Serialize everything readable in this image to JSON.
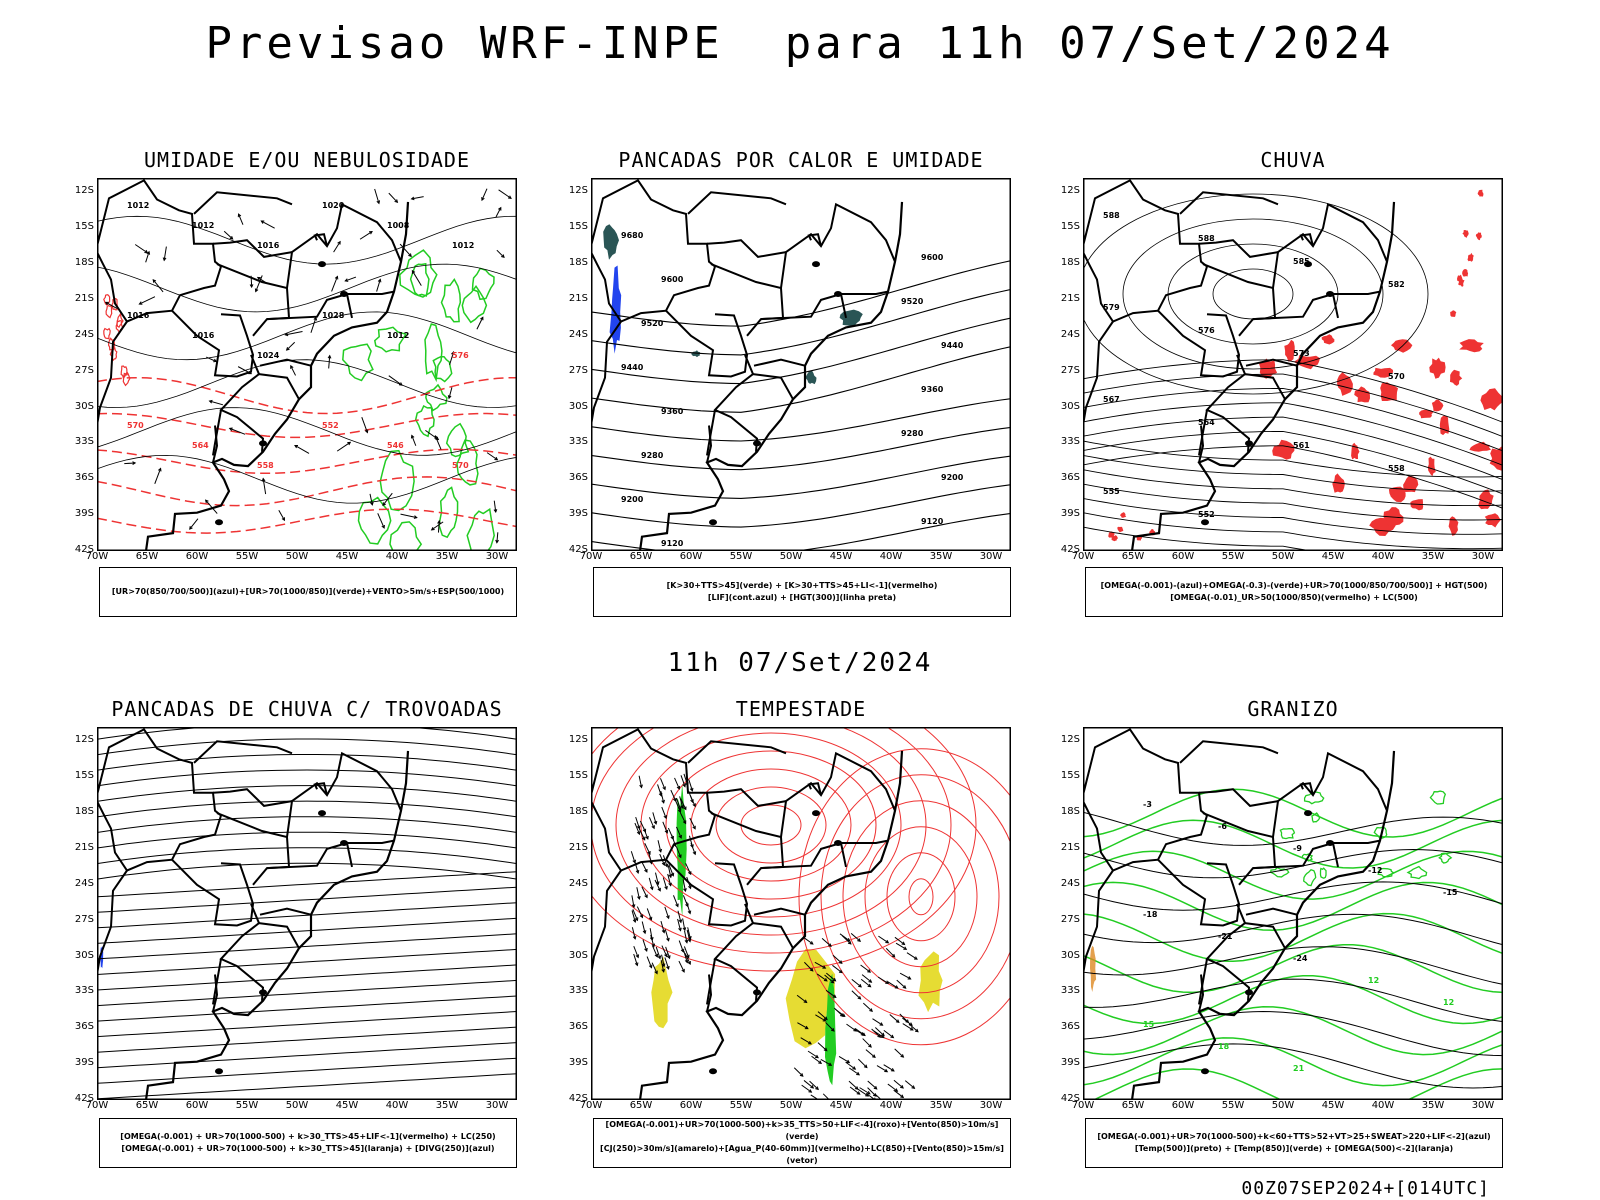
{
  "header": {
    "title": "Previsao WRF-INPE  para 11h 07/Set/2024",
    "mid_title": "11h 07/Set/2024",
    "footer": "00Z07SEP2024+[014UTC]"
  },
  "axes": {
    "lat_labels": [
      "12S",
      "15S",
      "18S",
      "21S",
      "24S",
      "27S",
      "30S",
      "33S",
      "36S",
      "39S",
      "42S"
    ],
    "lon_labels": [
      "70W",
      "65W",
      "60W",
      "55W",
      "50W",
      "45W",
      "40W",
      "35W",
      "30W"
    ]
  },
  "panels": [
    {
      "title": "UMIDADE E/OU NEBULOSIDADE",
      "legend": [
        "[UR>70(850/700/500)](azul)+[UR>70(1000/850)](verde)+VENTO>5m/s+ESP(500/1000)"
      ],
      "contour_labels": [
        "1012",
        "1012",
        "1016",
        "1020",
        "1008",
        "1012",
        "1016",
        "1016",
        "1024",
        "1028",
        "1012",
        "576",
        "570",
        "564",
        "558",
        "552",
        "546",
        "570"
      ]
    },
    {
      "title": "PANCADAS POR CALOR E UMIDADE",
      "legend": [
        "[K>30+TTS>45](verde) + [K>30+TTS>45+LI<-1](vermelho)",
        "[LIF](cont.azul) + [HGT(300)](linha preta)"
      ],
      "contour_labels": [
        "9680",
        "9600",
        "9600",
        "9520",
        "9520",
        "9440",
        "9440",
        "9360",
        "9360",
        "9280",
        "9280",
        "9200",
        "9200",
        "9120",
        "9120"
      ]
    },
    {
      "title": "CHUVA",
      "legend": [
        "[OMEGA(-0.001)-(azul)+OMEGA(-0.3)-(verde)+UR>70(1000/850/700/500)] + HGT(500)",
        "[OMEGA(-0.01)_UR>50(1000/850)(vermelho) + LC(500)"
      ],
      "contour_labels": [
        "588",
        "588",
        "585",
        "582",
        "579",
        "576",
        "573",
        "570",
        "567",
        "564",
        "561",
        "558",
        "555",
        "552"
      ]
    },
    {
      "title": "PANCADAS DE CHUVA C/ TROVOADAS",
      "legend": [
        "[OMEGA(-0.001) + UR>70(1000-500) + k>30_TTS>45+LIF<-1](vermelho) + LC(250)",
        "[OMEGA(-0.001) + UR>70(1000-500) + k>30_TTS>45](laranja) + [DIVG(250)](azul)"
      ],
      "contour_labels": []
    },
    {
      "title": "TEMPESTADE",
      "legend": [
        "[OMEGA(-0.001)+UR>70(1000-500)+k>35_TTS>50+LIF<-4](roxo)+[Vento(850)>10m/s](verde)",
        "[CJ(250)>30m/s](amarelo)+[Agua_P(40-60mm)](vermelho)+LC(850)+[Vento(850)>15m/s](vetor)"
      ],
      "contour_labels": []
    },
    {
      "title": "GRANIZO",
      "legend": [
        "[OMEGA(-0.001)+UR>70(1000-500)+k<60+TTS>52+VT>25+SWEAT>220+LIF<-2](azul)",
        "[Temp(500)](preto) + [Temp(850)](verde) + [OMEGA(500)<-2](laranja)"
      ],
      "contour_labels": [
        "-3",
        "-6",
        "-9",
        "-12",
        "-15",
        "-18",
        "-21",
        "-24",
        "12",
        "12",
        "15",
        "18",
        "21"
      ]
    }
  ],
  "colors": {
    "black": "#000000",
    "red": "#ee3333",
    "green": "#22cc22",
    "blue": "#2244ee",
    "yellow": "#e6dc33",
    "dark_teal": "#2a5555",
    "orange": "#dd8822"
  }
}
